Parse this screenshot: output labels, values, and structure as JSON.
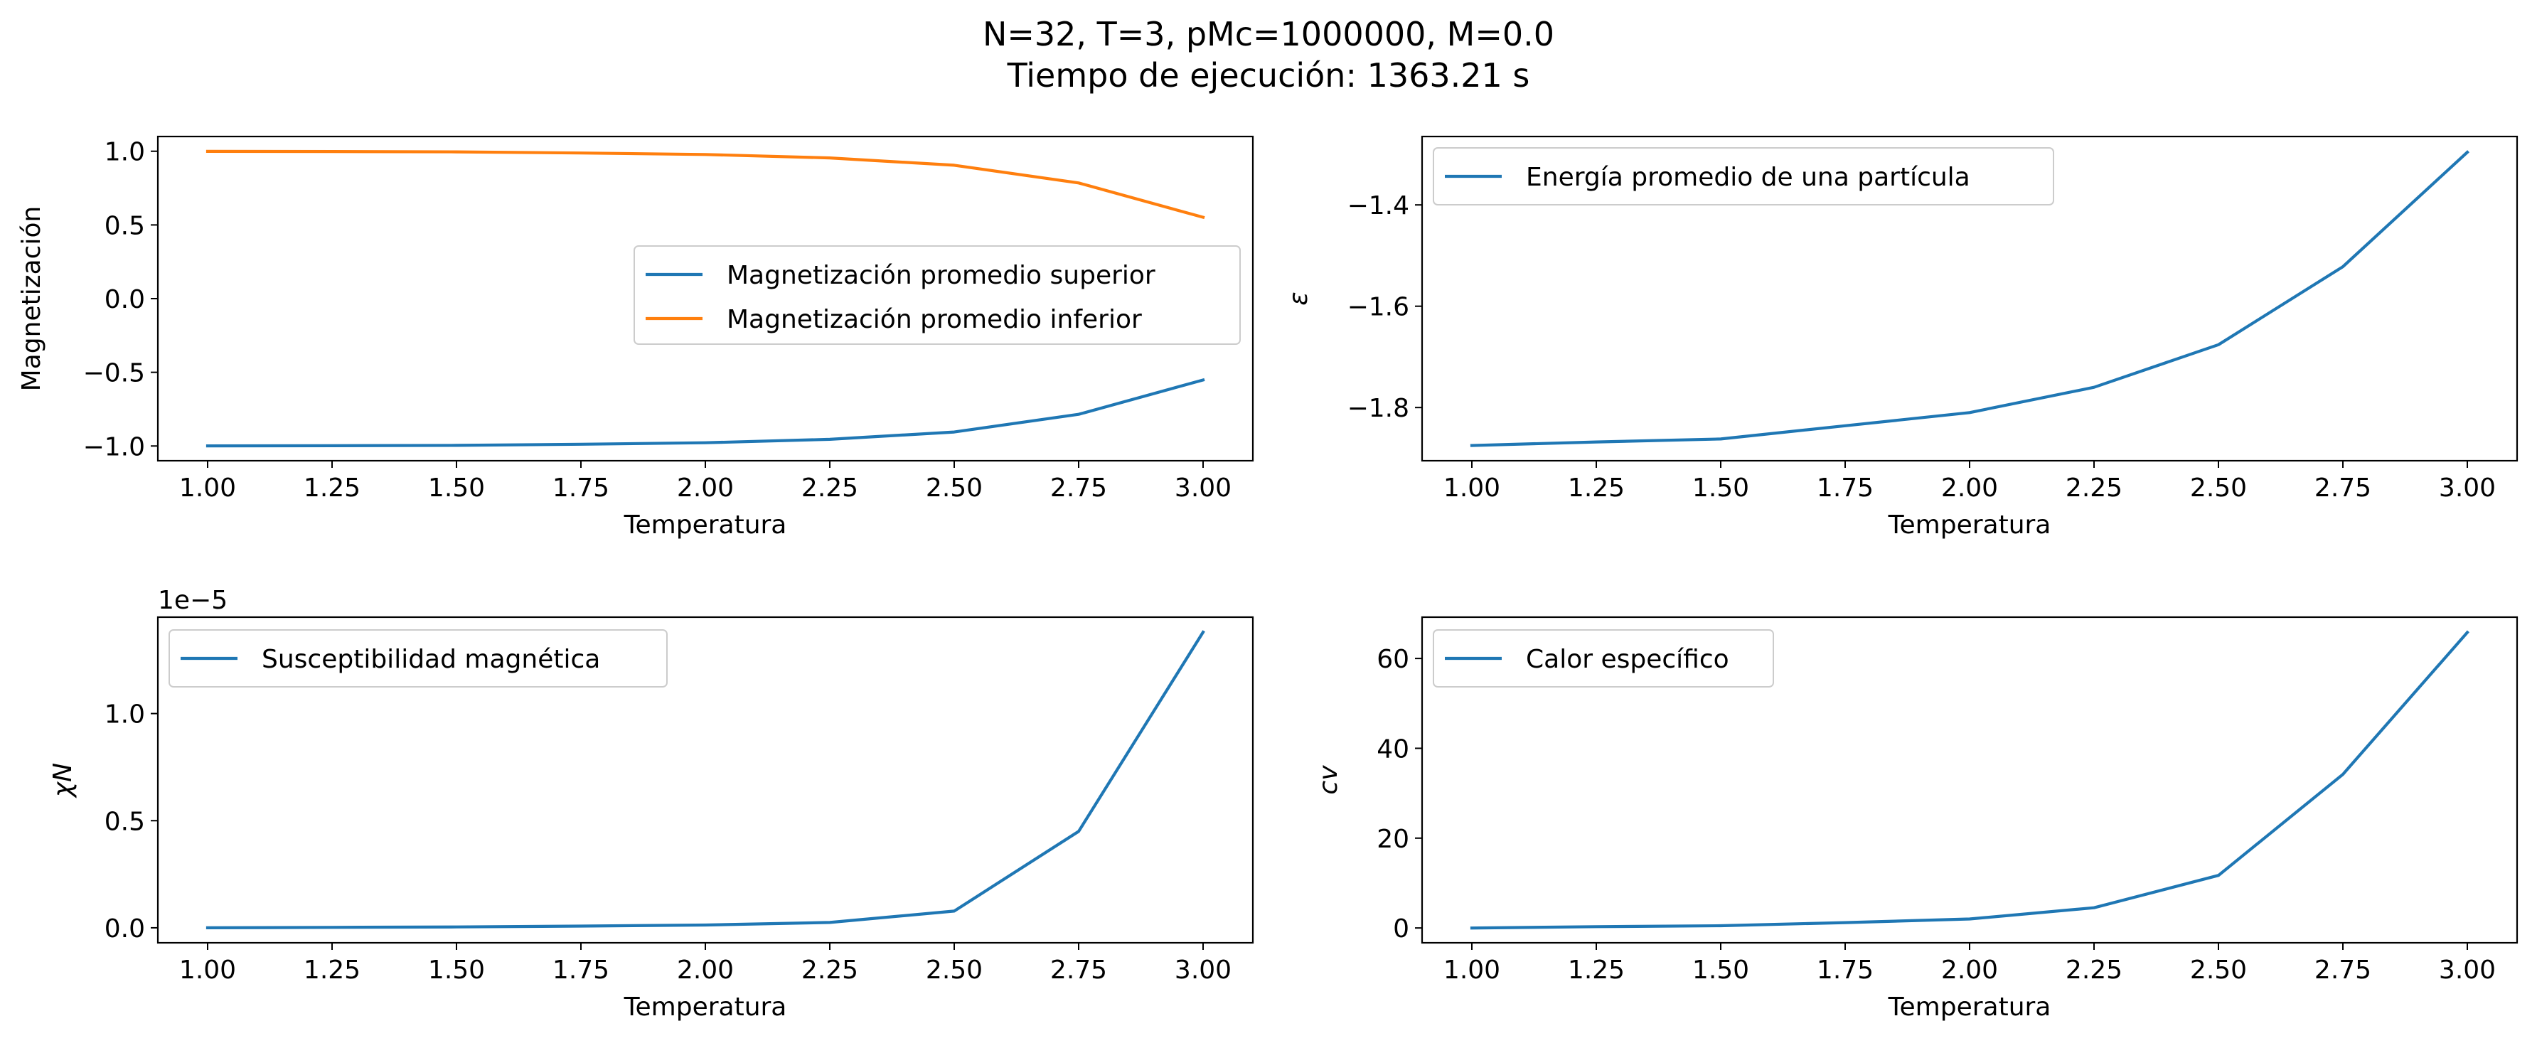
{
  "figure": {
    "title_line1": "N=32, T=3, pMc=1000000, M=0.0",
    "title_line2": "Tiempo de ejecución: 1363.21 s"
  },
  "chart_data": [
    {
      "type": "line",
      "title": "",
      "xlabel": "Temperatura",
      "ylabel": "Magnetización",
      "x": [
        1.0,
        1.25,
        1.5,
        1.75,
        2.0,
        2.25,
        2.5,
        2.75,
        3.0
      ],
      "xlim": [
        0.9,
        3.1
      ],
      "ylim": [
        -1.1,
        1.1
      ],
      "xticks": [
        "1.00",
        "1.25",
        "1.50",
        "1.75",
        "2.00",
        "2.25",
        "2.50",
        "2.75",
        "3.00"
      ],
      "yticks": [
        "−1.0",
        "−0.5",
        "0.0",
        "0.5",
        "1.0"
      ],
      "ytick_values": [
        -1.0,
        -0.5,
        0.0,
        0.5,
        1.0
      ],
      "offset_text": "",
      "legend": "center-right",
      "grid": false,
      "series": [
        {
          "name": "Magnetización promedio superior",
          "color": "#1f77b4",
          "values": [
            -0.999,
            -0.998,
            -0.996,
            -0.988,
            -0.978,
            -0.955,
            -0.905,
            -0.785,
            -0.552
          ]
        },
        {
          "name": "Magnetización promedio inferior",
          "color": "#ff7f0e",
          "values": [
            0.999,
            0.998,
            0.996,
            0.988,
            0.978,
            0.955,
            0.905,
            0.785,
            0.552
          ]
        }
      ]
    },
    {
      "type": "line",
      "title": "",
      "xlabel": "Temperatura",
      "ylabel": "ε",
      "x": [
        1.0,
        1.25,
        1.5,
        1.75,
        2.0,
        2.25,
        2.5,
        2.75,
        3.0
      ],
      "xlim": [
        0.9,
        3.1
      ],
      "ylim": [
        -1.905,
        -1.265
      ],
      "xticks": [
        "1.00",
        "1.25",
        "1.50",
        "1.75",
        "2.00",
        "2.25",
        "2.50",
        "2.75",
        "3.00"
      ],
      "yticks": [
        "−1.8",
        "−1.6",
        "−1.4"
      ],
      "ytick_values": [
        -1.8,
        -1.6,
        -1.4
      ],
      "offset_text": "",
      "legend": "top-left",
      "grid": false,
      "series": [
        {
          "name": "Energía promedio de una partícula",
          "color": "#1f77b4",
          "values": [
            -1.875,
            -1.868,
            -1.862,
            -1.836,
            -1.81,
            -1.76,
            -1.676,
            -1.522,
            -1.296
          ]
        }
      ]
    },
    {
      "type": "line",
      "title": "",
      "xlabel": "Temperatura",
      "ylabel": "χN",
      "x": [
        1.0,
        1.25,
        1.5,
        1.75,
        2.0,
        2.25,
        2.5,
        2.75,
        3.0
      ],
      "xlim": [
        0.9,
        3.1
      ],
      "ylim": [
        -0.07,
        1.45
      ],
      "xticks": [
        "1.00",
        "1.25",
        "1.50",
        "1.75",
        "2.00",
        "2.25",
        "2.50",
        "2.75",
        "3.00"
      ],
      "yticks": [
        "0.0",
        "0.5",
        "1.0"
      ],
      "ytick_values": [
        0.0,
        0.5,
        1.0
      ],
      "offset_text": "1e−5",
      "legend": "top-left",
      "grid": false,
      "series": [
        {
          "name": "Susceptibilidad magnética",
          "color": "#1f77b4",
          "values": [
            0.0,
            0.002,
            0.004,
            0.008,
            0.013,
            0.025,
            0.078,
            0.45,
            1.38
          ]
        }
      ]
    },
    {
      "type": "line",
      "title": "",
      "xlabel": "Temperatura",
      "ylabel": "cv",
      "x": [
        1.0,
        1.25,
        1.5,
        1.75,
        2.0,
        2.25,
        2.5,
        2.75,
        3.0
      ],
      "xlim": [
        0.9,
        3.1
      ],
      "ylim": [
        -3.3,
        69.2
      ],
      "xticks": [
        "1.00",
        "1.25",
        "1.50",
        "1.75",
        "2.00",
        "2.25",
        "2.50",
        "2.75",
        "3.00"
      ],
      "yticks": [
        "0",
        "20",
        "40",
        "60"
      ],
      "ytick_values": [
        0,
        20,
        40,
        60
      ],
      "offset_text": "",
      "legend": "top-left",
      "grid": false,
      "series": [
        {
          "name": "Calor específico",
          "color": "#1f77b4",
          "values": [
            0.0,
            0.3,
            0.5,
            1.2,
            2.0,
            4.5,
            11.7,
            34.2,
            65.8
          ]
        }
      ]
    }
  ]
}
